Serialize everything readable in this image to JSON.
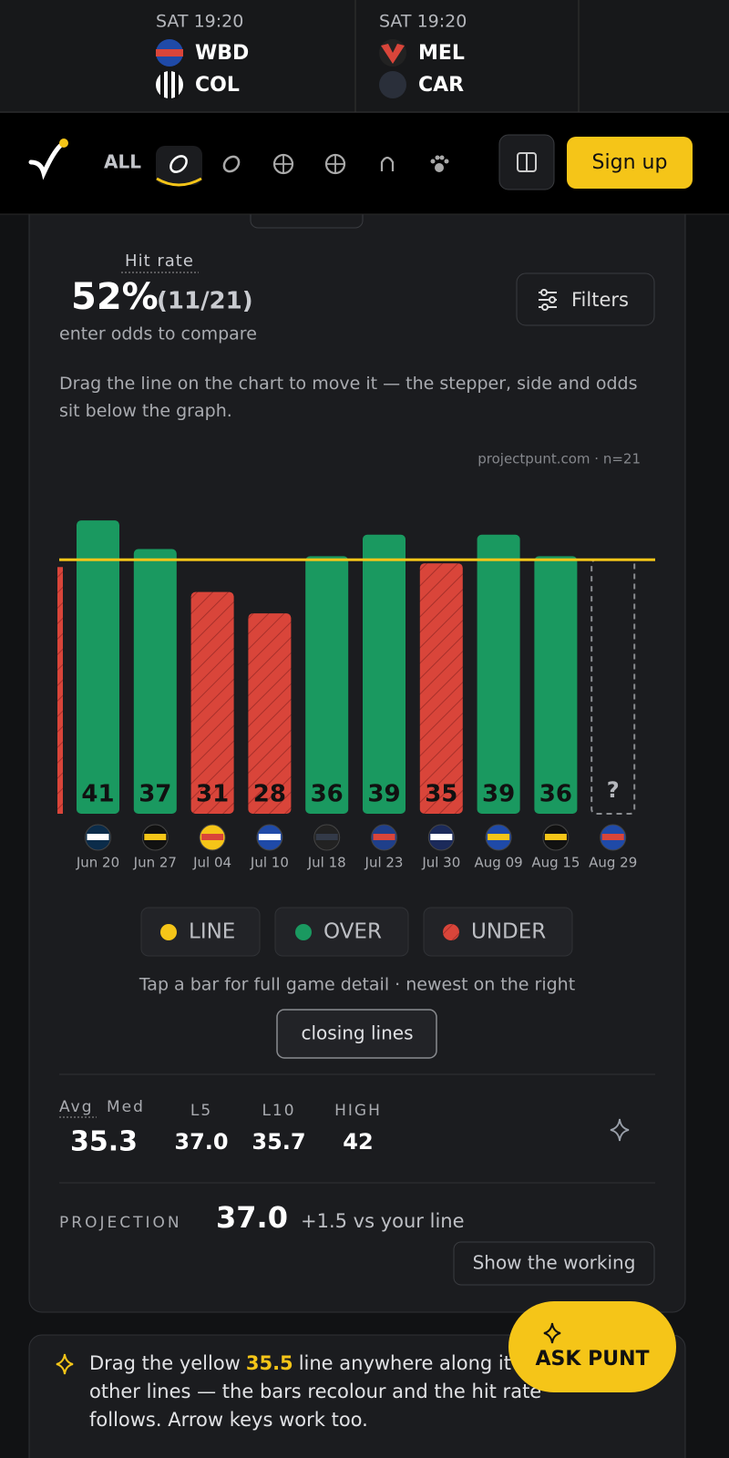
{
  "header": {
    "matches": [
      {
        "time": "SAT 19:20",
        "home": "WBD",
        "away": "COL"
      },
      {
        "time": "SAT 19:20",
        "home": "MEL",
        "away": "CAR"
      }
    ]
  },
  "nav": {
    "all": "ALL",
    "signup": "Sign up"
  },
  "hit_rate": {
    "label": "Hit rate",
    "percent": "52%",
    "count": "(11/21)",
    "hint": "enter odds to compare",
    "filters": "Filters"
  },
  "note": "Drag the line on the chart to move it — the stepper, side and odds sit below the graph.",
  "source": "projectpunt.com · n=21",
  "chart_data": {
    "type": "bar",
    "categories": [
      "Jun 20",
      "Jun 27",
      "Jul 04",
      "Jul 10",
      "Jul 18",
      "Jul 23",
      "Jul 30",
      "Aug 09",
      "Aug 15",
      "Aug 29"
    ],
    "values": [
      41,
      37,
      31,
      28,
      36,
      39,
      35,
      39,
      36,
      null
    ],
    "pending_label": "?",
    "line": 35.5,
    "ylim": [
      0,
      47
    ],
    "line_color": "#f5c518",
    "over_color": "#1a9960",
    "under_color": "#d9453a",
    "legend": {
      "line": "LINE",
      "over": "OVER",
      "under": "UNDER"
    }
  },
  "caption": "Tap a bar for full game detail · newest on the right",
  "closing_lines": "closing lines",
  "stats": {
    "avg_label": "Avg",
    "med_label": "Med",
    "avg": "35.3",
    "items": [
      {
        "label": "L5",
        "value": "37.0"
      },
      {
        "label": "L10",
        "value": "35.7"
      },
      {
        "label": "HIGH",
        "value": "42"
      }
    ]
  },
  "projection": {
    "label": "PROJECTION",
    "value": "37.0",
    "delta": "+1.5 vs your line",
    "button": "Show the working"
  },
  "tip": {
    "before": "Drag the yellow",
    "value": "35.5",
    "after": "line anywhere along it to test other lines — the bars recolour and the hit rate follows. Arrow keys work too."
  },
  "ask": "ASK PUNT"
}
